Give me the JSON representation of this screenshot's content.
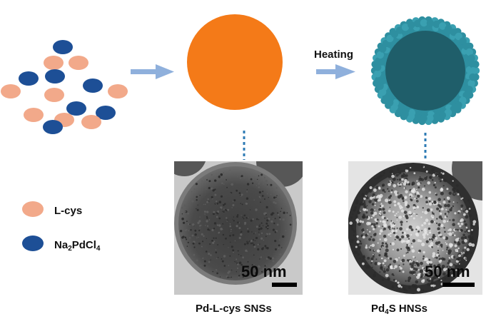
{
  "labels": {
    "step": "Heating",
    "legend_lcys": "L-cys",
    "legend_na2pdcl4": {
      "a": "Na",
      "b": "2",
      "c": "PdCl",
      "d": "4"
    },
    "caption_left": "Pd-L-cys SNSs",
    "caption_right": {
      "a": "Pd",
      "b": "4",
      "c": "S HNSs"
    },
    "scale_left": "50 nm",
    "scale_right": "50 nm"
  },
  "colors": {
    "lcys": "#f2a98a",
    "na2pdcl4": "#1d4f96",
    "solid_sphere": "#f47a18",
    "hollow_shell": "#2e8fa0",
    "hollow_core": "#1f5e6a",
    "arrow": "#8fb0dc",
    "connector": "#2e7bb5"
  }
}
